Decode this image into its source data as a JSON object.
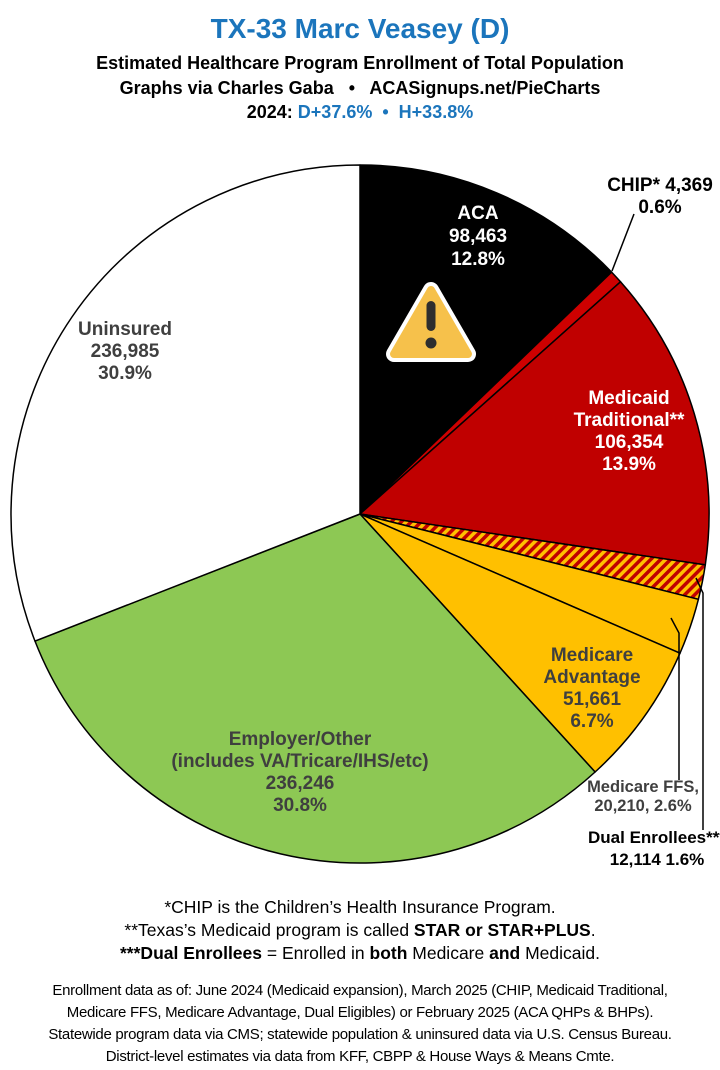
{
  "header": {
    "title": "TX-33 Marc Veasey (D)",
    "subtitle": "Estimated Healthcare Program Enrollment of Total Population",
    "byline": "Graphs via Charles Gaba   •   ACASignups.net/PieCharts",
    "partisan_lean_segments": [
      {
        "text": "2024: ",
        "color": "#000000"
      },
      {
        "text": "D+37.6%",
        "color": "#1B75BC"
      },
      {
        "text": "  •  ",
        "color": "#1B75BC"
      },
      {
        "text": "H+33.8%",
        "color": "#1B75BC"
      }
    ],
    "accent_color": "#1B75BC"
  },
  "chart_data": {
    "type": "pie",
    "title": "Estimated Healthcare Program Enrollment of Total Population",
    "district": "TX-33",
    "representative": "Marc Veasey (D)",
    "rotation": "clockwise from 12 o'clock",
    "outline_color": "#000000",
    "slices": [
      {
        "id": "aca",
        "name": "ACA",
        "value": 98463,
        "value_label": "98,463",
        "percent": 12.8,
        "pct_label": "12.8%",
        "color": "#000000",
        "label_placement": "inside",
        "label_lines": [
          "ACA",
          "98,463",
          "12.8%"
        ]
      },
      {
        "id": "chip",
        "name": "CHIP*",
        "value": 4369,
        "value_label": "4,369",
        "percent": 0.6,
        "pct_label": "0.6%",
        "color": "#CE0000",
        "label_placement": "outside",
        "label_lines": [
          "CHIP* 4,369",
          "0.6%"
        ]
      },
      {
        "id": "medicaid-traditional",
        "name": "Medicaid Traditional**",
        "value": 106354,
        "value_label": "106,354",
        "percent": 13.9,
        "pct_label": "13.9%",
        "color": "#C00000",
        "label_placement": "inside",
        "label_lines": [
          "Medicaid",
          "Traditional**",
          "106,354",
          "13.9%"
        ]
      },
      {
        "id": "dual-enrollees",
        "name": "Dual Enrollees***",
        "value": 12114,
        "value_label": "12,114",
        "percent": 1.6,
        "pct_label": "1.6%",
        "color": "#FFC000",
        "hatch": true,
        "hatch_color": "#C00000",
        "label_placement": "outside",
        "label_lines": [
          "Dual Enrollees***",
          "12,114 1.6%"
        ]
      },
      {
        "id": "medicare-ffs",
        "name": "Medicare FFS",
        "value": 20210,
        "value_label": "20,210",
        "percent": 2.6,
        "pct_label": "2.6%",
        "color": "#FFC000",
        "label_placement": "outside",
        "label_lines": [
          "Medicare FFS,",
          "20,210, 2.6%"
        ]
      },
      {
        "id": "medicare-advantage",
        "name": "Medicare Advantage",
        "value": 51661,
        "value_label": "51,661",
        "percent": 6.7,
        "pct_label": "6.7%",
        "color": "#FFC000",
        "label_placement": "inside",
        "label_lines": [
          "Medicare",
          "Advantage",
          "51,661",
          "6.7%"
        ]
      },
      {
        "id": "employer-other",
        "name": "Employer/Other (includes VA/Tricare/IHS/etc)",
        "value": 236246,
        "value_label": "236,246",
        "percent": 30.8,
        "pct_label": "30.8%",
        "color": "#8DC854",
        "label_placement": "inside",
        "label_lines": [
          "Employer/Other",
          "(includes VA/Tricare/IHS/etc)",
          "236,246",
          "30.8%"
        ]
      },
      {
        "id": "uninsured",
        "name": "Uninsured",
        "value": 236985,
        "value_label": "236,985",
        "percent": 30.9,
        "pct_label": "30.9%",
        "color": "#FFFFFF",
        "label_placement": "inside",
        "label_lines": [
          "Uninsured",
          "236,985",
          "30.9%"
        ]
      }
    ]
  },
  "warning_icon": {
    "meaning": "data-warning",
    "fill": "#F6C14B",
    "mark_color": "#2E2E2E"
  },
  "footnotes": [
    [
      {
        "text": "*CHIP is the Children’s Health Insurance Program.",
        "bold": false
      }
    ],
    [
      {
        "text": "**Texas’s Medicaid program is called ",
        "bold": false
      },
      {
        "text": "STAR or STAR+PLUS",
        "bold": true
      },
      {
        "text": ".",
        "bold": false
      }
    ],
    [
      {
        "text": "***Dual Enrollees",
        "bold": true
      },
      {
        "text": " = Enrolled in ",
        "bold": false
      },
      {
        "text": "both",
        "bold": true
      },
      {
        "text": " Medicare ",
        "bold": false
      },
      {
        "text": "and",
        "bold": true
      },
      {
        "text": " Medicaid.",
        "bold": false
      }
    ]
  ],
  "sources": [
    "Enrollment data as of: June 2024 (Medicaid expansion), March 2025 (CHIP, Medicaid Traditional,",
    "Medicare FFS, Medicare Advantage, Dual Eligibles) or February 2025 (ACA QHPs & BHPs).",
    "Statewide program data via CMS; statewide population & uninsured data via U.S. Census Bureau.",
    "District-level estimates via data from KFF, CBPP & House Ways & Means Cmte."
  ]
}
